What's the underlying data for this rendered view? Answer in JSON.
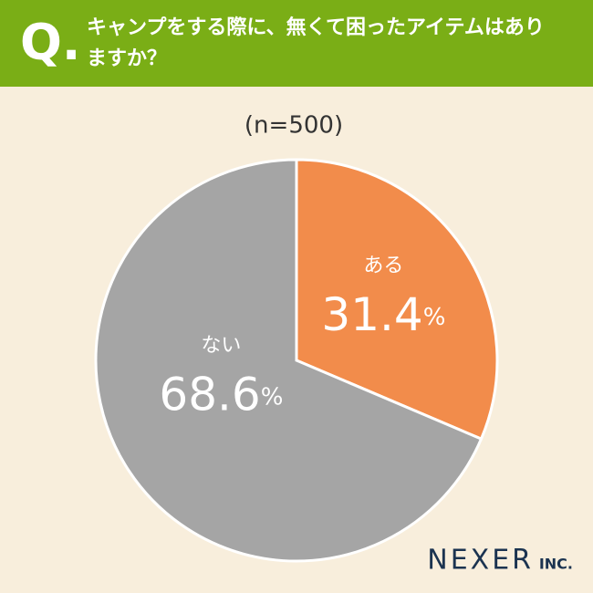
{
  "chart_data": {
    "type": "pie",
    "question_mark": "Q.",
    "title": "キャンプをする際に、無くて困ったアイテムはありますか？",
    "subtitle": "(n=500)",
    "categories": [
      "ある",
      "ない"
    ],
    "values": [
      31.4,
      68.6
    ],
    "value_labels": [
      "31.4%",
      "68.6%"
    ],
    "colors": [
      "#f28c4b",
      "#a5a5a5"
    ],
    "logo": "NEXER",
    "logo_suffix": "INC."
  }
}
